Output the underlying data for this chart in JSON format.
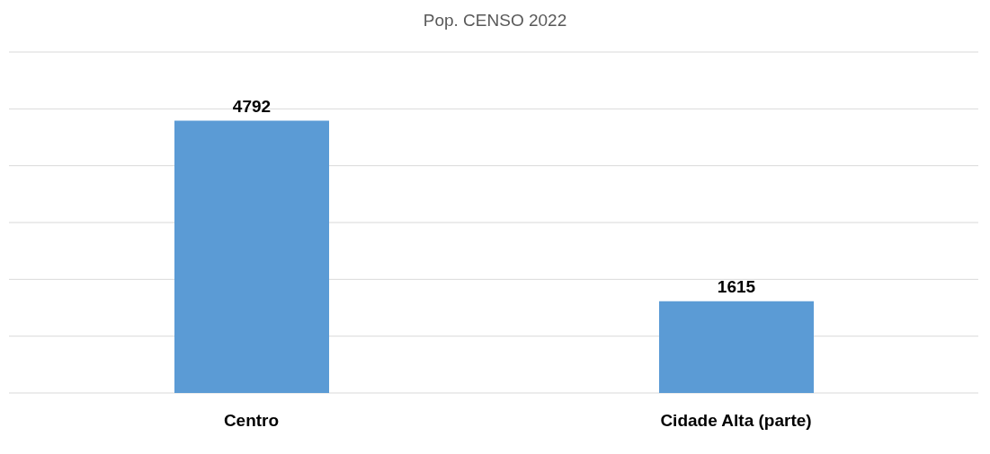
{
  "chart_data": {
    "type": "bar",
    "title": "Pop. CENSO 2022",
    "categories": [
      "Centro",
      "Cidade Alta (parte)"
    ],
    "values": [
      4792,
      1615
    ],
    "color": "#5b9bd5",
    "ylim": [
      0,
      6000
    ],
    "yticks": [
      {
        "value": 0,
        "label": null
      },
      {
        "value": 1000,
        "label": null
      },
      {
        "value": 2000,
        "label": null
      },
      {
        "value": 3000,
        "label": null
      },
      {
        "value": 4000,
        "label": null
      },
      {
        "value": 5000,
        "label": null
      },
      {
        "value": 6000,
        "label": null
      }
    ],
    "grid": "y",
    "tick_labels": "x",
    "data_labels": true
  }
}
